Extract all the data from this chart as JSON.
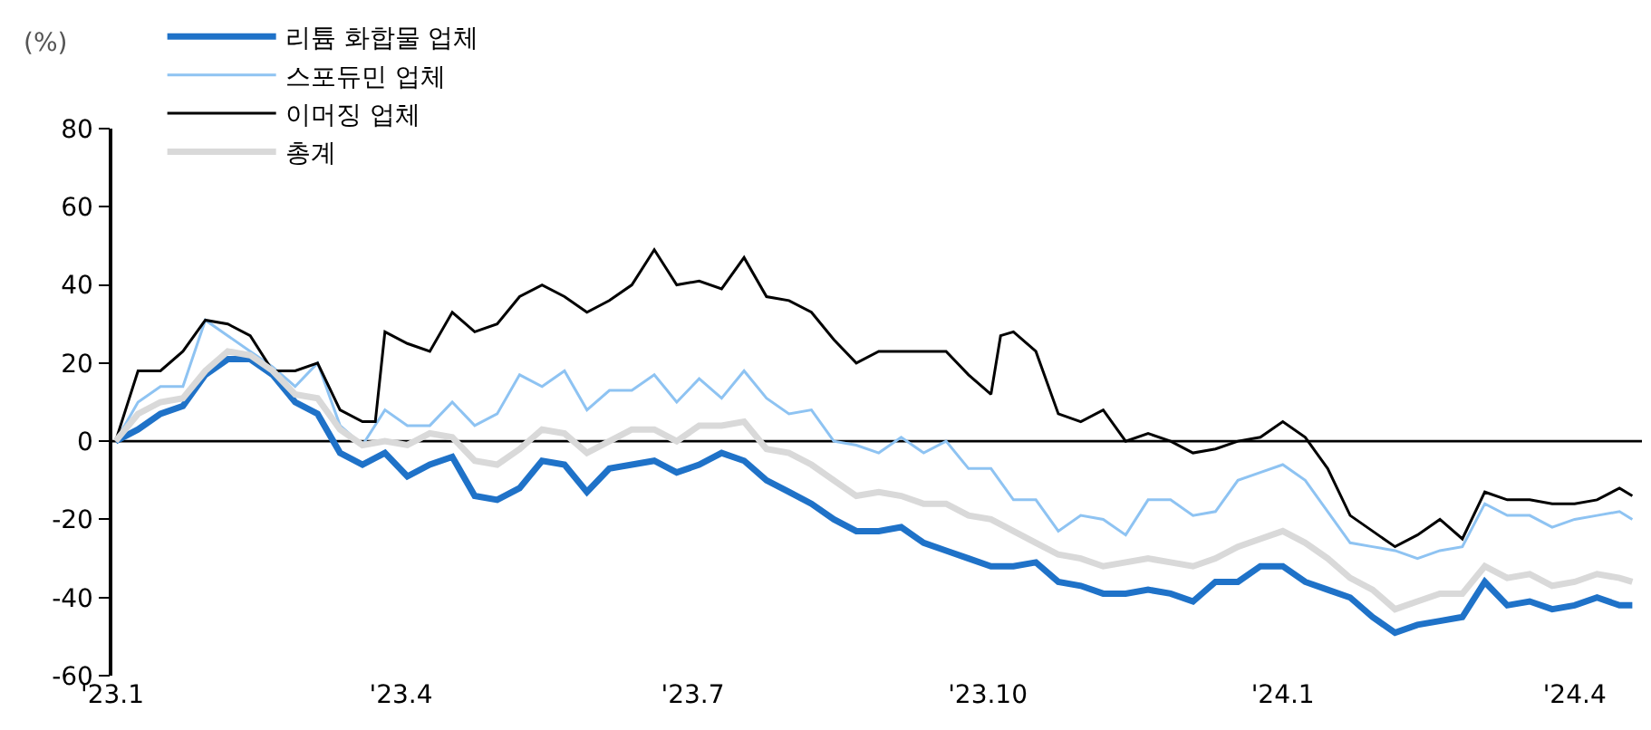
{
  "chart_data": {
    "type": "line",
    "ylabel": "(%)",
    "x": [
      "2023-01-02",
      "2023-01-09",
      "2023-01-16",
      "2023-01-23",
      "2023-01-30",
      "2023-02-06",
      "2023-02-13",
      "2023-02-20",
      "2023-02-27",
      "2023-03-06",
      "2023-03-13",
      "2023-03-20",
      "2023-03-27",
      "2023-04-03",
      "2023-04-10",
      "2023-04-17",
      "2023-04-24",
      "2023-05-01",
      "2023-05-08",
      "2023-05-15",
      "2023-05-22",
      "2023-05-29",
      "2023-06-05",
      "2023-06-12",
      "2023-06-19",
      "2023-06-26",
      "2023-07-03",
      "2023-07-10",
      "2023-07-17",
      "2023-07-24",
      "2023-07-31",
      "2023-08-07",
      "2023-08-14",
      "2023-08-21",
      "2023-08-28",
      "2023-09-04",
      "2023-09-11",
      "2023-09-18",
      "2023-09-25",
      "2023-10-02",
      "2023-10-09",
      "2023-10-16",
      "2023-10-23",
      "2023-10-30",
      "2023-11-06",
      "2023-11-13",
      "2023-11-20",
      "2023-11-27",
      "2023-12-04",
      "2023-12-11",
      "2023-12-18",
      "2023-12-25",
      "2024-01-01",
      "2024-01-08",
      "2024-01-15",
      "2024-01-22",
      "2024-01-29",
      "2024-02-05",
      "2024-02-12",
      "2024-02-19",
      "2024-02-26",
      "2024-03-04",
      "2024-03-11",
      "2024-03-18",
      "2024-03-25",
      "2024-04-01",
      "2024-04-08",
      "2024-04-15",
      "2024-04-19"
    ],
    "series": [
      {
        "name": "리튬 화합물 업체",
        "color": "#1f72c8",
        "values": [
          0,
          3,
          7,
          9,
          17,
          21,
          21,
          17,
          10,
          7,
          -3,
          -6,
          -3,
          -9,
          -6,
          -4,
          -14,
          -15,
          -12,
          -5,
          -6,
          -13,
          -7,
          -6,
          -5,
          -8,
          -6,
          -3,
          -5,
          -10,
          -13,
          -16,
          -20,
          -23,
          -23,
          -22,
          -26,
          -28,
          -30,
          -32,
          -32,
          -31,
          -36,
          -37,
          -39,
          -39,
          -38,
          -39,
          -41,
          -36,
          -36,
          -32,
          -32,
          -36,
          -38,
          -40,
          -45,
          -49,
          -47,
          -46,
          -45,
          -36,
          -42,
          -41,
          -43,
          -42,
          -40,
          -42,
          -42
        ]
      },
      {
        "name": "스포듀민 업체",
        "color": "#8ec3f2",
        "values": [
          0,
          10,
          14,
          14,
          31,
          27,
          23,
          19,
          14,
          20,
          4,
          -1,
          8,
          4,
          4,
          10,
          4,
          7,
          17,
          14,
          18,
          8,
          13,
          13,
          17,
          10,
          16,
          11,
          18,
          11,
          7,
          8,
          0,
          -1,
          -3,
          1,
          -3,
          0,
          -7,
          -7,
          -15,
          -15,
          -23,
          -19,
          -20,
          -24,
          -15,
          -15,
          -19,
          -18,
          -10,
          -8,
          -6,
          -10,
          -18,
          -26,
          -27,
          -28,
          -30,
          -28,
          -27,
          -16,
          -19,
          -19,
          -22,
          -20,
          -19,
          -18,
          -20
        ]
      },
      {
        "name": "이머징 업체",
        "color": "#000000",
        "x": [
          "2023-01-02",
          "2023-01-09",
          "2023-01-16",
          "2023-01-23",
          "2023-01-30",
          "2023-02-06",
          "2023-02-13",
          "2023-02-20",
          "2023-02-27",
          "2023-03-06",
          "2023-03-13",
          "2023-03-20",
          "2023-03-24",
          "2023-03-27",
          "2023-04-03",
          "2023-04-10",
          "2023-04-17",
          "2023-04-24",
          "2023-05-01",
          "2023-05-08",
          "2023-05-15",
          "2023-05-22",
          "2023-05-29",
          "2023-06-05",
          "2023-06-12",
          "2023-06-19",
          "2023-06-26",
          "2023-07-03",
          "2023-07-10",
          "2023-07-17",
          "2023-07-24",
          "2023-07-31",
          "2023-08-07",
          "2023-08-14",
          "2023-08-21",
          "2023-08-28",
          "2023-09-04",
          "2023-09-11",
          "2023-09-18",
          "2023-09-25",
          "2023-10-02",
          "2023-10-05",
          "2023-10-09",
          "2023-10-16",
          "2023-10-23",
          "2023-10-30",
          "2023-11-06",
          "2023-11-13",
          "2023-11-20",
          "2023-11-27",
          "2023-12-04",
          "2023-12-11",
          "2023-12-18",
          "2023-12-25",
          "2024-01-01",
          "2024-01-08",
          "2024-01-15",
          "2024-01-22",
          "2024-01-29",
          "2024-02-05",
          "2024-02-12",
          "2024-02-19",
          "2024-02-26",
          "2024-03-04",
          "2024-03-11",
          "2024-03-18",
          "2024-03-25",
          "2024-04-01",
          "2024-04-08",
          "2024-04-15",
          "2024-04-19"
        ],
        "values": [
          0,
          18,
          18,
          23,
          31,
          30,
          27,
          18,
          18,
          20,
          8,
          5,
          5,
          28,
          25,
          23,
          33,
          28,
          30,
          37,
          40,
          37,
          33,
          36,
          40,
          49,
          40,
          41,
          39,
          47,
          37,
          36,
          33,
          26,
          20,
          23,
          23,
          23,
          23,
          17,
          12,
          27,
          28,
          23,
          7,
          5,
          8,
          0,
          2,
          0,
          -3,
          -2,
          0,
          1,
          5,
          1,
          -7,
          -19,
          -23,
          -27,
          -24,
          -20,
          -25,
          -13,
          -15,
          -15,
          -16,
          -16,
          -15,
          -12,
          -14
        ]
      },
      {
        "name": "총계",
        "color": "#d9d9d9",
        "values": [
          0,
          7,
          10,
          11,
          18,
          23,
          22,
          18,
          12,
          11,
          3,
          -1,
          0,
          -1,
          2,
          1,
          -5,
          -6,
          -2,
          3,
          2,
          -3,
          0,
          3,
          3,
          0,
          4,
          4,
          5,
          -2,
          -3,
          -6,
          -10,
          -14,
          -13,
          -14,
          -16,
          -16,
          -19,
          -20,
          -23,
          -26,
          -29,
          -30,
          -32,
          -31,
          -30,
          -31,
          -32,
          -30,
          -27,
          -25,
          -23,
          -26,
          -30,
          -35,
          -38,
          -43,
          -41,
          -39,
          -39,
          -32,
          -35,
          -34,
          -37,
          -36,
          -34,
          -35,
          -36
        ]
      }
    ],
    "xlim": [
      "2023-01-01",
      "2024-04-22"
    ],
    "xticks": [
      {
        "value": "2023-01-01",
        "label": "'23.1"
      },
      {
        "value": "2023-04-01",
        "label": "'23.4"
      },
      {
        "value": "2023-07-01",
        "label": "'23.7"
      },
      {
        "value": "2023-10-01",
        "label": "'23.10"
      },
      {
        "value": "2024-01-01",
        "label": "'24.1"
      },
      {
        "value": "2024-04-01",
        "label": "'24.4"
      }
    ],
    "ylim": [
      -60,
      80
    ],
    "yticks": [
      -60,
      -40,
      -20,
      0,
      20,
      40,
      60,
      80
    ],
    "grid": false,
    "legend": "top left",
    "ref_lines": [
      {
        "axis": "y",
        "value": 0,
        "color": "#000000"
      }
    ]
  }
}
